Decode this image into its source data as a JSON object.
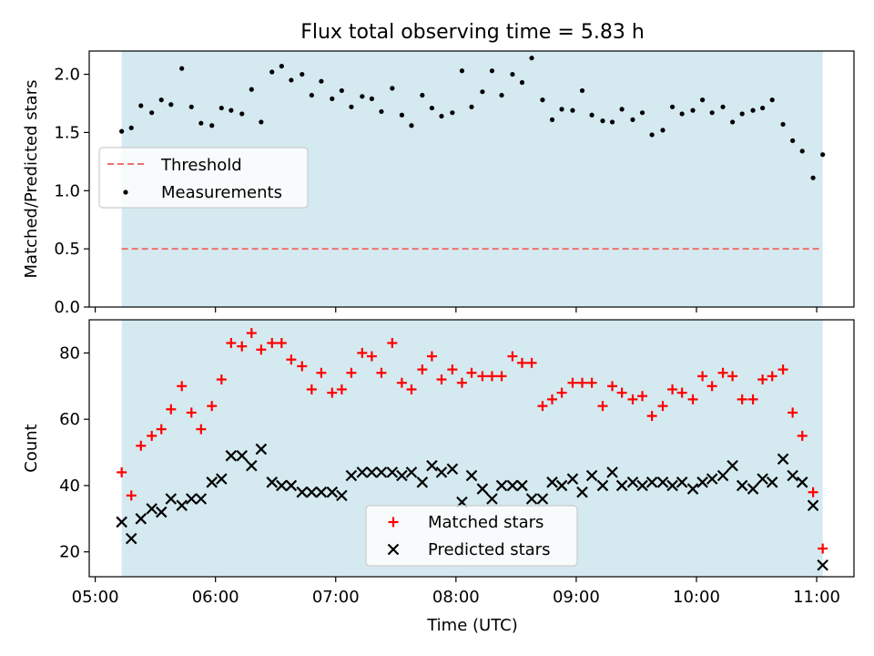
{
  "title": "Flux total observing time = 5.83 h",
  "colors": {
    "background_span": "#d4eaf0",
    "threshold": "#f07070",
    "measurement": "#000000",
    "matched": "#ff0000",
    "predicted": "#000000"
  },
  "chart_data": [
    {
      "type": "scatter",
      "title": "Flux total observing time = 5.83 h",
      "xlabel": "",
      "ylabel": "Matched/Predicted stars",
      "ylim": [
        0,
        2.2
      ],
      "y_ticks": [
        "0.0",
        "0.5",
        "1.0",
        "1.5",
        "2.0"
      ],
      "y_tick_values": [
        0,
        0.5,
        1.0,
        1.5,
        2.0
      ],
      "x_ticks": [
        "05:00",
        "06:00",
        "07:00",
        "08:00",
        "09:00",
        "10:00",
        "11:00"
      ],
      "x_tick_hours": [
        5,
        6,
        7,
        8,
        9,
        10,
        11
      ],
      "xlim_hours": [
        4.95,
        11.31
      ],
      "shaded_span_hours": [
        5.22,
        11.05
      ],
      "grid": false,
      "legend_position": "center-left",
      "legend": [
        "Threshold",
        "Measurements"
      ],
      "threshold": {
        "name": "Threshold",
        "value": 0.5,
        "style": "dashed"
      },
      "series": [
        {
          "name": "Measurements",
          "marker": "dot",
          "x_hours": [
            5.22,
            5.3,
            5.38,
            5.47,
            5.55,
            5.63,
            5.72,
            5.8,
            5.88,
            5.97,
            6.05,
            6.13,
            6.22,
            6.3,
            6.38,
            6.47,
            6.55,
            6.63,
            6.72,
            6.8,
            6.88,
            6.97,
            7.05,
            7.13,
            7.22,
            7.3,
            7.38,
            7.47,
            7.55,
            7.63,
            7.72,
            7.8,
            7.88,
            7.97,
            8.05,
            8.13,
            8.22,
            8.3,
            8.38,
            8.47,
            8.55,
            8.63,
            8.72,
            8.8,
            8.88,
            8.97,
            9.05,
            9.13,
            9.22,
            9.3,
            9.38,
            9.47,
            9.55,
            9.63,
            9.72,
            9.8,
            9.88,
            9.97,
            10.05,
            10.13,
            10.22,
            10.3,
            10.38,
            10.47,
            10.55,
            10.63,
            10.72,
            10.8,
            10.88,
            10.97,
            11.05
          ],
          "y": [
            1.51,
            1.54,
            1.73,
            1.67,
            1.78,
            1.74,
            2.05,
            1.72,
            1.58,
            1.56,
            1.71,
            1.69,
            1.66,
            1.87,
            1.59,
            2.02,
            2.07,
            1.95,
            2.0,
            1.82,
            1.94,
            1.79,
            1.86,
            1.72,
            1.81,
            1.79,
            1.68,
            1.88,
            1.65,
            1.56,
            1.82,
            1.71,
            1.64,
            1.67,
            2.03,
            1.72,
            1.85,
            2.03,
            1.82,
            2.0,
            1.93,
            2.14,
            1.78,
            1.61,
            1.7,
            1.69,
            1.86,
            1.65,
            1.6,
            1.59,
            1.7,
            1.61,
            1.67,
            1.48,
            1.52,
            1.72,
            1.66,
            1.69,
            1.78,
            1.67,
            1.72,
            1.59,
            1.66,
            1.69,
            1.71,
            1.78,
            1.57,
            1.43,
            1.34,
            1.11,
            1.31
          ]
        }
      ]
    },
    {
      "type": "scatter",
      "title": "",
      "xlabel": "Time (UTC)",
      "ylabel": "Count",
      "ylim": [
        12.5,
        90
      ],
      "y_ticks": [
        "20",
        "40",
        "60",
        "80"
      ],
      "y_tick_values": [
        20,
        40,
        60,
        80
      ],
      "x_ticks": [
        "05:00",
        "06:00",
        "07:00",
        "08:00",
        "09:00",
        "10:00",
        "11:00"
      ],
      "x_tick_hours": [
        5,
        6,
        7,
        8,
        9,
        10,
        11
      ],
      "xlim_hours": [
        4.95,
        11.31
      ],
      "shaded_span_hours": [
        5.22,
        11.05
      ],
      "grid": false,
      "legend_position": "bottom-center",
      "legend": [
        "Matched stars",
        "Predicted stars"
      ],
      "series": [
        {
          "name": "Matched stars",
          "marker": "plus",
          "x_hours": [
            5.22,
            5.3,
            5.38,
            5.47,
            5.55,
            5.63,
            5.72,
            5.8,
            5.88,
            5.97,
            6.05,
            6.13,
            6.22,
            6.3,
            6.38,
            6.47,
            6.55,
            6.63,
            6.72,
            6.8,
            6.88,
            6.97,
            7.05,
            7.13,
            7.22,
            7.3,
            7.38,
            7.47,
            7.55,
            7.63,
            7.72,
            7.8,
            7.88,
            7.97,
            8.05,
            8.13,
            8.22,
            8.3,
            8.38,
            8.47,
            8.55,
            8.63,
            8.72,
            8.8,
            8.88,
            8.97,
            9.05,
            9.13,
            9.22,
            9.3,
            9.38,
            9.47,
            9.55,
            9.63,
            9.72,
            9.8,
            9.88,
            9.97,
            10.05,
            10.13,
            10.22,
            10.3,
            10.38,
            10.47,
            10.55,
            10.63,
            10.72,
            10.8,
            10.88,
            10.97,
            11.05
          ],
          "y": [
            44,
            37,
            52,
            55,
            57,
            63,
            70,
            62,
            57,
            64,
            72,
            83,
            82,
            86,
            81,
            83,
            83,
            78,
            76,
            69,
            74,
            68,
            69,
            74,
            80,
            79,
            74,
            83,
            71,
            69,
            75,
            79,
            72,
            75,
            71,
            74,
            73,
            73,
            73,
            79,
            77,
            77,
            64,
            66,
            68,
            71,
            71,
            71,
            64,
            70,
            68,
            66,
            67,
            61,
            64,
            69,
            68,
            66,
            73,
            70,
            74,
            73,
            66,
            66,
            72,
            73,
            75,
            62,
            55,
            38,
            21
          ]
        },
        {
          "name": "Predicted stars",
          "marker": "x",
          "x_hours": [
            5.22,
            5.3,
            5.38,
            5.47,
            5.55,
            5.63,
            5.72,
            5.8,
            5.88,
            5.97,
            6.05,
            6.13,
            6.22,
            6.3,
            6.38,
            6.47,
            6.55,
            6.63,
            6.72,
            6.8,
            6.88,
            6.97,
            7.05,
            7.13,
            7.22,
            7.3,
            7.38,
            7.47,
            7.55,
            7.63,
            7.72,
            7.8,
            7.88,
            7.97,
            8.05,
            8.13,
            8.22,
            8.3,
            8.38,
            8.47,
            8.55,
            8.63,
            8.72,
            8.8,
            8.88,
            8.97,
            9.05,
            9.13,
            9.22,
            9.3,
            9.38,
            9.47,
            9.55,
            9.63,
            9.72,
            9.8,
            9.88,
            9.97,
            10.05,
            10.13,
            10.22,
            10.3,
            10.38,
            10.47,
            10.55,
            10.63,
            10.72,
            10.8,
            10.88,
            10.97,
            11.05
          ],
          "y": [
            29,
            24,
            30,
            33,
            32,
            36,
            34,
            36,
            36,
            41,
            42,
            49,
            49,
            46,
            51,
            41,
            40,
            40,
            38,
            38,
            38,
            38,
            37,
            43,
            44,
            44,
            44,
            44,
            43,
            44,
            41,
            46,
            44,
            45,
            35,
            43,
            39,
            36,
            40,
            40,
            40,
            36,
            36,
            41,
            40,
            42,
            38,
            43,
            40,
            44,
            40,
            41,
            40,
            41,
            41,
            40,
            41,
            39,
            41,
            42,
            43,
            46,
            40,
            39,
            42,
            41,
            48,
            43,
            41,
            34,
            16
          ]
        }
      ]
    }
  ]
}
